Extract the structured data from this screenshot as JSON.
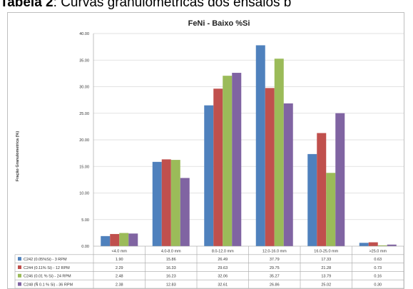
{
  "caption": {
    "prefix": "Tabela 2",
    "rest": ": Curvas granulométricas dos ensaios b"
  },
  "chart_data": {
    "type": "bar",
    "title": "FeNi - Baixo %Si",
    "ylabel": "Fração Granulometrica (%)",
    "xlabel": "",
    "ylim": [
      0,
      40
    ],
    "yticks": [
      "0.00",
      "5.00",
      "10.00",
      "15.00",
      "20.00",
      "25.00",
      "30.00",
      "35.00",
      "40.00"
    ],
    "grid": true,
    "legend": "table-below",
    "categories": [
      "<4.0 mm",
      "4.0-8.0 mm",
      "8.0-12.0 mm",
      "12.0-16.0 mm",
      "16.0-25.0 mm",
      ">25.0 mm"
    ],
    "series": [
      {
        "name": "C242 (0.05%Si) - 3 RPM",
        "color": "#4f81bd",
        "values": [
          1.9,
          15.86,
          26.49,
          37.79,
          17.33,
          0.63
        ],
        "labels": [
          "1.90",
          "15.86",
          "26.49",
          "37.79",
          "17.33",
          "0.63"
        ]
      },
      {
        "name": "C244 (0.11% Si) - 12 RPM",
        "color": "#c0504d",
        "values": [
          2.29,
          16.33,
          29.63,
          29.75,
          21.28,
          0.73
        ],
        "labels": [
          "2.29",
          "16.33",
          "29.63",
          "29.75",
          "21.28",
          "0.73"
        ]
      },
      {
        "name": "C246 (0.01 % Si) - 24 RPM",
        "color": "#9bbb59",
        "values": [
          2.48,
          16.23,
          32.06,
          35.27,
          13.79,
          0.16
        ],
        "labels": [
          "2.48",
          "16.23",
          "32.06",
          "35.27",
          "13.79",
          "0.16"
        ]
      },
      {
        "name": "C248 (Ñ 0.1 % Si) - 36 RPM",
        "color": "#8064a2",
        "values": [
          2.38,
          12.83,
          32.61,
          26.86,
          25.02,
          0.3
        ],
        "labels": [
          "2.38",
          "12.83",
          "32.61",
          "26.86",
          "25.02",
          "0.30"
        ]
      }
    ]
  }
}
